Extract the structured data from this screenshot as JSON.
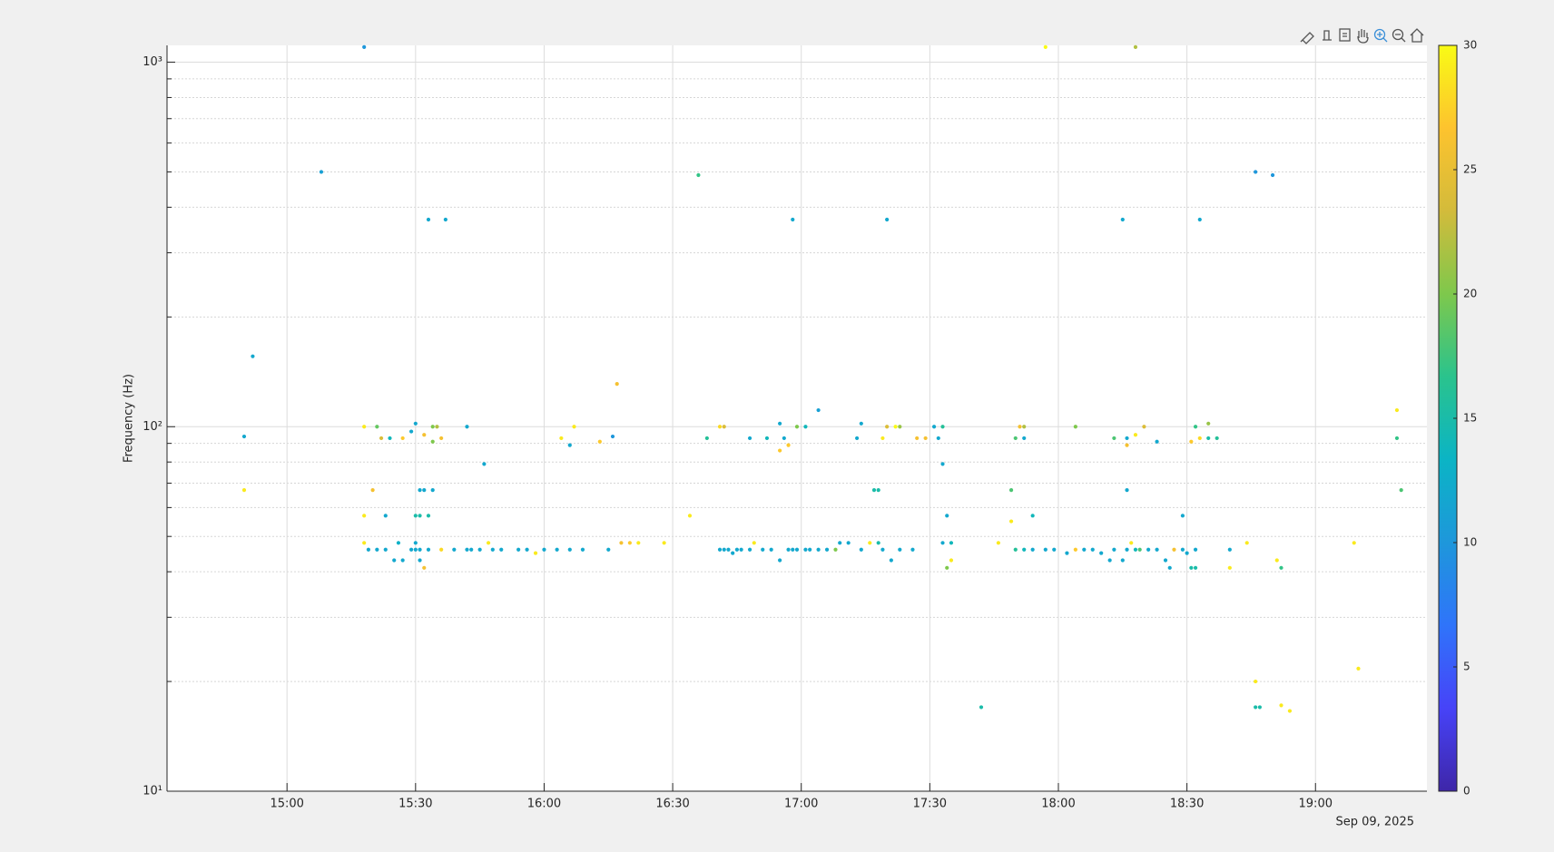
{
  "chart_data": {
    "type": "scatter",
    "y_label": "Frequency (Hz)",
    "x_date_label": "Sep 09, 2025",
    "xlim": [
      "14:32",
      "19:26"
    ],
    "xticks": [
      "15:00",
      "15:30",
      "16:00",
      "16:30",
      "17:00",
      "17:30",
      "18:00",
      "18:30",
      "19:00"
    ],
    "ylim": [
      10,
      1112
    ],
    "log_y": true,
    "yticks": [
      {
        "value": 10,
        "label": "10¹"
      },
      {
        "value": 100,
        "label": "10²"
      },
      {
        "value": 1000,
        "label": "10³"
      }
    ],
    "yminorticks": [
      20,
      30,
      40,
      50,
      60,
      70,
      80,
      90,
      200,
      300,
      400,
      500,
      600,
      700,
      800,
      900
    ],
    "grid": true,
    "minor_grid": true,
    "clim": [
      0,
      30
    ],
    "colorbar_ticks": [
      0,
      5,
      10,
      15,
      20,
      25,
      30
    ],
    "colormap": [
      "#3e26a8",
      "#4743f8",
      "#2f74fa",
      "#1e97db",
      "#0bb4c5",
      "#2ac38d",
      "#7ec84c",
      "#d3bb3b",
      "#fdc32e",
      "#f9fb15"
    ],
    "x": [
      "15:18",
      "17:57",
      "18:18",
      "15:08",
      "16:36",
      "18:46",
      "18:50",
      "15:33",
      "15:37",
      "16:58",
      "17:20",
      "18:15",
      "18:33",
      "14:52",
      "16:17",
      "17:04",
      "19:19",
      "14:50",
      "14:50",
      "15:18",
      "15:21",
      "15:22",
      "15:24",
      "15:27",
      "15:29",
      "15:30",
      "15:32",
      "15:34",
      "15:34",
      "15:35",
      "15:36",
      "15:42",
      "16:04",
      "16:06",
      "16:07",
      "16:13",
      "16:16",
      "16:38",
      "16:41",
      "16:42",
      "16:48",
      "16:52",
      "16:55",
      "16:55",
      "16:56",
      "16:57",
      "16:59",
      "17:01",
      "17:13",
      "17:14",
      "17:19",
      "17:20",
      "17:22",
      "17:23",
      "17:27",
      "17:29",
      "17:31",
      "17:32",
      "17:33",
      "17:33",
      "17:51",
      "17:52",
      "17:52",
      "17:50",
      "18:04",
      "18:13",
      "18:16",
      "18:16",
      "18:18",
      "18:20",
      "18:23",
      "18:31",
      "18:32",
      "18:33",
      "18:35",
      "18:35",
      "18:37",
      "19:19",
      "15:46",
      "15:20",
      "15:31",
      "15:32",
      "15:34",
      "17:17",
      "17:18",
      "17:49",
      "18:16",
      "19:20",
      "15:18",
      "15:23",
      "15:30",
      "15:31",
      "15:33",
      "16:34",
      "17:34",
      "17:49",
      "17:54",
      "18:29",
      "15:18",
      "15:19",
      "15:21",
      "15:23",
      "15:26",
      "15:25",
      "15:27",
      "15:29",
      "15:30",
      "15:30",
      "15:31",
      "15:31",
      "15:32",
      "15:33",
      "15:36",
      "15:39",
      "15:42",
      "15:43",
      "15:45",
      "15:47",
      "15:48",
      "15:50",
      "15:54",
      "15:56",
      "15:58",
      "16:00",
      "16:03",
      "16:06",
      "16:09",
      "16:15",
      "16:18",
      "16:20",
      "16:22",
      "16:28",
      "16:41",
      "16:42",
      "16:43",
      "16:44",
      "16:45",
      "16:46",
      "16:48",
      "16:49",
      "16:51",
      "16:53",
      "16:55",
      "16:57",
      "16:58",
      "16:59",
      "17:01",
      "17:02",
      "17:04",
      "17:06",
      "17:08",
      "17:09",
      "17:11",
      "17:14",
      "17:16",
      "17:18",
      "17:19",
      "17:21",
      "17:23",
      "17:26",
      "17:33",
      "17:34",
      "17:35",
      "17:35",
      "17:46",
      "17:50",
      "17:52",
      "17:54",
      "17:57",
      "17:59",
      "18:02",
      "18:04",
      "18:06",
      "18:08",
      "18:10",
      "18:12",
      "18:13",
      "18:15",
      "18:16",
      "18:17",
      "18:18",
      "18:19",
      "18:21",
      "18:23",
      "18:25",
      "18:26",
      "18:27",
      "18:29",
      "18:30",
      "18:31",
      "18:32",
      "18:32",
      "18:40",
      "18:40",
      "18:44",
      "18:51",
      "18:52",
      "19:09",
      "17:42",
      "18:46",
      "18:47",
      "18:52",
      "18:54",
      "18:46",
      "19:10"
    ],
    "values": [
      1100,
      1100,
      1100,
      500,
      490,
      500,
      490,
      370,
      370,
      370,
      370,
      370,
      370,
      156,
      131,
      111,
      111,
      94,
      67,
      100,
      100,
      93,
      93,
      93,
      97,
      102,
      95,
      91,
      100,
      100,
      93,
      100,
      93,
      89,
      100,
      91,
      94,
      93,
      100,
      100,
      93,
      93,
      86,
      102,
      93,
      89,
      100,
      100,
      93,
      102,
      93,
      100,
      100,
      100,
      93,
      93,
      100,
      93,
      100,
      79,
      100,
      100,
      93,
      93,
      100,
      93,
      89,
      93,
      95,
      100,
      91,
      91,
      100,
      93,
      93,
      102,
      93,
      93,
      79,
      67,
      67,
      67,
      67,
      67,
      67,
      67,
      67,
      67,
      57,
      57,
      57,
      57,
      57,
      57,
      57,
      55,
      57,
      57,
      48,
      46,
      46,
      46,
      48,
      43,
      43,
      46,
      46,
      48,
      46,
      43,
      41,
      46,
      46,
      46,
      46,
      46,
      46,
      48,
      46,
      46,
      46,
      46,
      45,
      46,
      46,
      46,
      46,
      46,
      48,
      48,
      48,
      48,
      46,
      46,
      46,
      45,
      46,
      46,
      46,
      48,
      46,
      46,
      43,
      46,
      46,
      46,
      46,
      46,
      46,
      46,
      46,
      48,
      48,
      46,
      48,
      48,
      46,
      43,
      46,
      46,
      48,
      41,
      43,
      48,
      48,
      46,
      46,
      46,
      46,
      46,
      45,
      46,
      46,
      46,
      45,
      43,
      46,
      43,
      46,
      48,
      46,
      46,
      46,
      46,
      43,
      41,
      46,
      46,
      45,
      41,
      41,
      46,
      46,
      41,
      48,
      43,
      41,
      48,
      17,
      17,
      17,
      17.2,
      16.6,
      20,
      21.7
    ],
    "color_values": [
      10,
      30,
      22,
      11,
      17,
      10,
      10,
      12,
      12,
      12,
      12,
      12,
      12,
      12,
      26,
      11,
      29,
      12,
      29,
      29,
      19,
      24,
      14,
      27,
      12,
      12,
      26,
      20,
      20,
      22,
      26,
      12,
      29,
      12,
      29,
      27,
      10,
      16,
      28,
      24,
      12,
      14,
      27,
      12,
      12,
      27,
      20,
      14,
      12,
      12,
      29,
      24,
      30,
      21,
      26,
      26,
      12,
      12,
      16,
      12,
      26,
      22,
      12,
      18,
      20,
      18,
      26,
      12,
      29,
      24,
      12,
      27,
      17,
      28,
      15,
      21,
      16,
      17,
      12,
      26,
      12,
      12,
      12,
      15,
      15,
      18,
      12,
      18,
      29,
      12,
      15,
      15,
      15,
      29,
      12,
      29,
      14,
      12,
      29,
      12,
      12,
      12,
      13,
      12,
      12,
      12,
      12,
      12,
      12,
      12,
      26,
      12,
      28,
      12,
      12,
      12,
      12,
      29,
      12,
      12,
      12,
      12,
      29,
      12,
      12,
      12,
      12,
      12,
      26,
      27,
      29,
      29,
      12,
      12,
      12,
      12,
      12,
      12,
      12,
      29,
      12,
      12,
      12,
      12,
      12,
      12,
      12,
      12,
      12,
      12,
      20,
      12,
      12,
      12,
      29,
      15,
      12,
      12,
      12,
      12,
      12,
      20,
      29,
      14,
      29,
      16,
      14,
      12,
      12,
      12,
      12,
      27,
      12,
      12,
      12,
      12,
      12,
      12,
      12,
      29,
      14,
      18,
      12,
      12,
      12,
      12,
      26,
      12,
      12,
      15,
      15,
      12,
      12,
      29,
      29,
      29,
      17,
      29,
      15,
      15,
      15,
      29,
      29,
      29,
      29
    ]
  }
}
